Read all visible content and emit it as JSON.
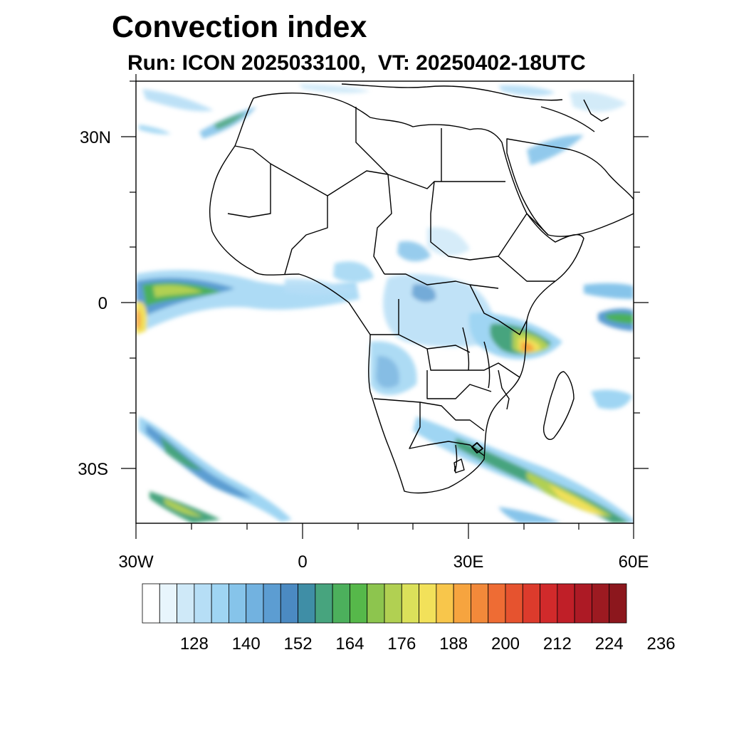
{
  "title": "Convection index",
  "subtitle": "Run: ICON 2025033100,  VT: 20250402-18UTC",
  "axes": {
    "lon_ticks": [
      "30W",
      "0",
      "30E",
      "60E"
    ],
    "lat_ticks": [
      "30N",
      "0",
      "30S"
    ]
  },
  "chart_data": {
    "type": "heatmap",
    "variable": "Convection index",
    "model": "ICON",
    "run": "2025033100",
    "valid_time": "20250402-18UTC",
    "lon_range": [
      -30,
      60
    ],
    "lat_range": [
      -40,
      40
    ],
    "x_ticks": [
      -30,
      0,
      30,
      60
    ],
    "y_ticks": [
      30,
      0,
      -30
    ],
    "colorbar": {
      "min": 116,
      "step": 4,
      "labels": [
        128,
        140,
        152,
        164,
        176,
        188,
        200,
        212,
        224,
        236
      ],
      "colors": [
        "#ffffff",
        "#e8f5fc",
        "#cfe9f8",
        "#b6def6",
        "#9fd5f3",
        "#86c4ea",
        "#72b2e0",
        "#5c9dd2",
        "#4b8ac2",
        "#3f8ea6",
        "#47a47e",
        "#4cb05c",
        "#56b84a",
        "#8dc54e",
        "#b1d052",
        "#dbe15a",
        "#f2e15a",
        "#f8c64b",
        "#f6a43f",
        "#f2893a",
        "#ee6c34",
        "#e6532f",
        "#dc3b2c",
        "#d12a2b",
        "#c01f28",
        "#ad1a25",
        "#9c1a21",
        "#8c171d"
      ]
    }
  }
}
